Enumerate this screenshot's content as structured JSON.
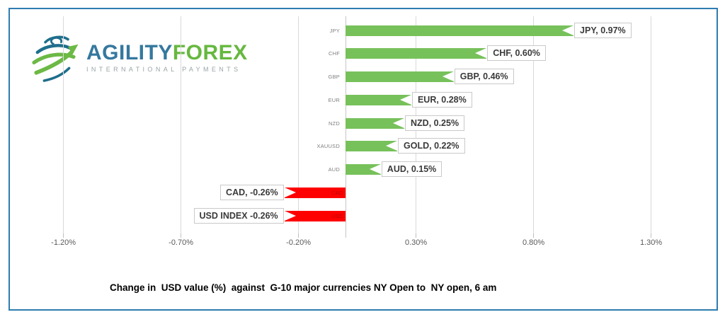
{
  "logo": {
    "brand_primary": "AGILITY",
    "brand_secondary": "FOREX",
    "tagline": "INTERNATIONAL PAYMENTS",
    "colors": {
      "primary": "#35789E",
      "secondary": "#66B83F",
      "tagline": "#9BA5A8",
      "globe_teal": "#1F6E8C",
      "globe_green": "#6CB945"
    }
  },
  "frame_color": "#2E7CB0",
  "caption": "Change in  USD value (%)  against  G-10 major currencies NY Open to  NY open, 6 am",
  "chart_data": {
    "type": "bar",
    "orientation": "horizontal",
    "title": "",
    "xlabel": "",
    "ylabel": "",
    "categories": [
      "JPY",
      "CHF",
      "GBP",
      "EUR",
      "NZD",
      "XAUUSD",
      "AUD",
      "CAD",
      "USD INDEX"
    ],
    "values": [
      0.97,
      0.6,
      0.46,
      0.28,
      0.25,
      0.22,
      0.15,
      -0.26,
      -0.26
    ],
    "data_labels": [
      "JPY, 0.97%",
      "CHF, 0.60%",
      "GBP, 0.46%",
      "EUR, 0.28%",
      "NZD, 0.25%",
      "GOLD, 0.22%",
      "AUD, 0.15%",
      "CAD, -0.26%",
      "USD INDEX -0.26%"
    ],
    "in_bar_labels": [
      "",
      "",
      "",
      "",
      "",
      "",
      "",
      "CAD",
      "USD"
    ],
    "x_ticks": [
      {
        "label": "-1.20%",
        "value": -1.2
      },
      {
        "label": "-0.70%",
        "value": -0.7
      },
      {
        "label": "-0.20%",
        "value": -0.2
      },
      {
        "label": "0.30%",
        "value": 0.3
      },
      {
        "label": "0.80%",
        "value": 0.8
      },
      {
        "label": "1.30%",
        "value": 1.3
      }
    ],
    "xlim": [
      -1.45,
      1.6
    ],
    "grid": true,
    "legend": "none",
    "positive_color": "#77C15B",
    "negative_color": "#FE0000",
    "gridline_color": "#D9D9D9",
    "axis_color": "#C6C6C6",
    "tick_label_color": "#595959"
  }
}
